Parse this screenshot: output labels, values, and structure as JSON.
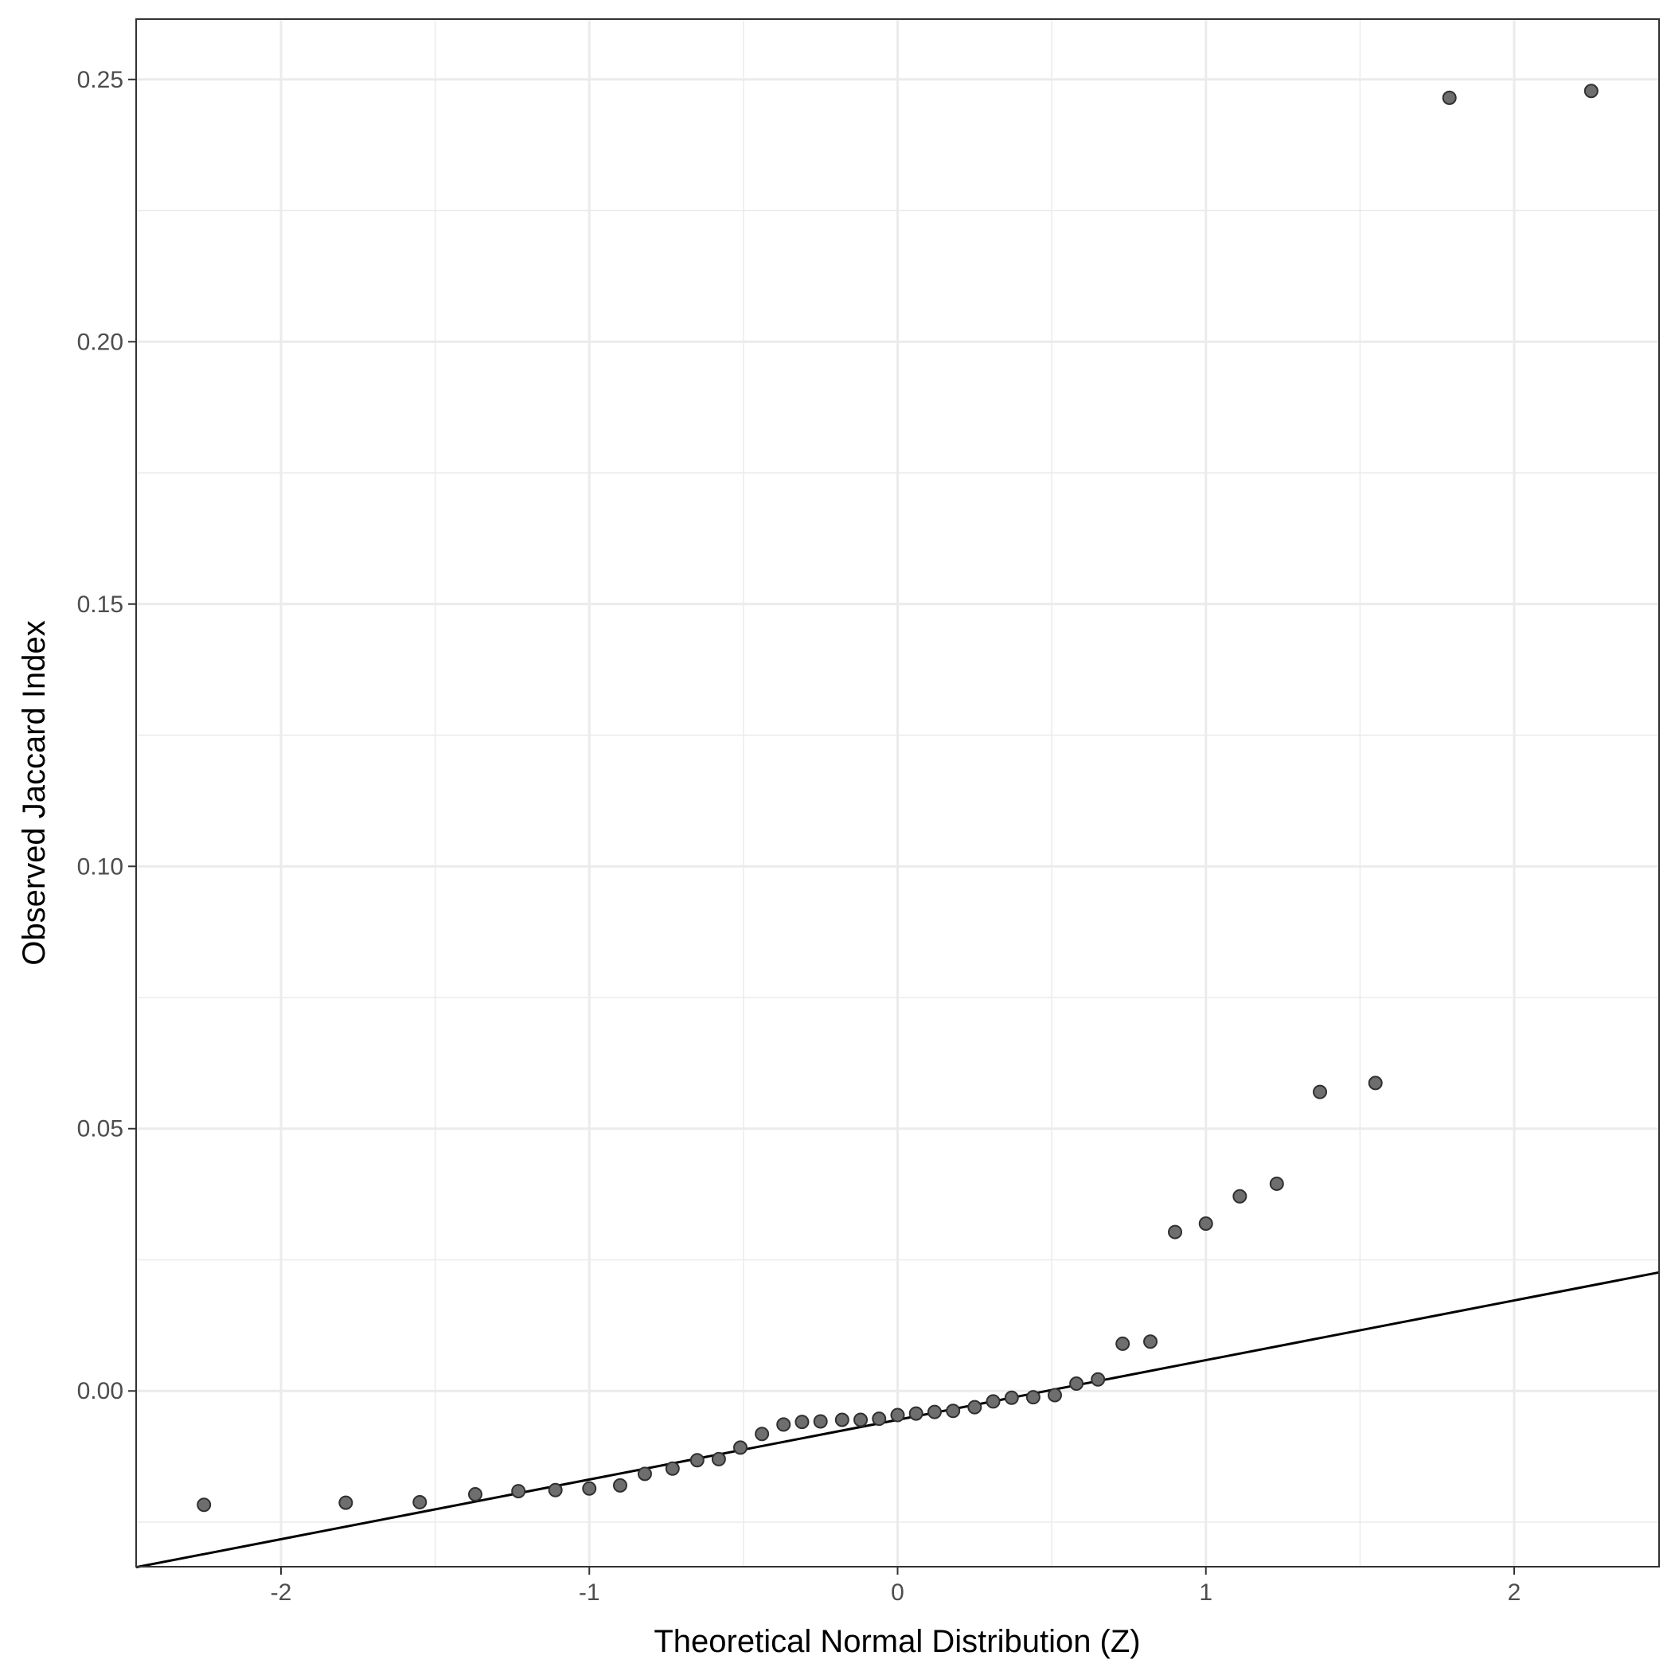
{
  "chart_data": {
    "type": "scatter",
    "title": "",
    "xlabel": "Theoretical Normal Distribution (Z)",
    "ylabel": "Observed Jaccard Index",
    "xlim": [
      -2.47,
      2.47
    ],
    "ylim": [
      -0.0335,
      0.2615
    ],
    "x_ticks": [
      -2,
      -1,
      0,
      1,
      2
    ],
    "x_tick_labels": [
      "-2",
      "-1",
      "0",
      "1",
      "2"
    ],
    "y_ticks": [
      0.0,
      0.05,
      0.1,
      0.15,
      0.2,
      0.25
    ],
    "y_tick_labels": [
      "0.00",
      "0.05",
      "0.10",
      "0.15",
      "0.20",
      "0.25"
    ],
    "grid": true,
    "legend": "none",
    "colors": {
      "point_fill": "#6e6e6e",
      "point_stroke": "#303030",
      "reference_line": "#000000",
      "grid": "#ebebeb",
      "panel_border": "#333333"
    },
    "reference_line": {
      "type": "qq-line",
      "points": [
        [
          -2.47,
          -0.0336
        ],
        [
          2.47,
          0.0226
        ]
      ]
    },
    "series": [
      {
        "values": [
          [
            -2.25,
            -0.0217
          ],
          [
            -1.79,
            -0.0213
          ],
          [
            -1.55,
            -0.0212
          ],
          [
            -1.37,
            -0.0197
          ],
          [
            -1.23,
            -0.0191
          ],
          [
            -1.11,
            -0.0189
          ],
          [
            -1.0,
            -0.0186
          ],
          [
            -0.9,
            -0.018
          ],
          [
            -0.82,
            -0.0158
          ],
          [
            -0.73,
            -0.0148
          ],
          [
            -0.65,
            -0.0132
          ],
          [
            -0.58,
            -0.013
          ],
          [
            -0.51,
            -0.0108
          ],
          [
            -0.44,
            -0.0082
          ],
          [
            -0.37,
            -0.0064
          ],
          [
            -0.31,
            -0.0059
          ],
          [
            -0.25,
            -0.0058
          ],
          [
            -0.18,
            -0.0055
          ],
          [
            -0.12,
            -0.0055
          ],
          [
            -0.06,
            -0.0053
          ],
          [
            0.0,
            -0.0046
          ],
          [
            0.06,
            -0.0043
          ],
          [
            0.12,
            -0.004
          ],
          [
            0.18,
            -0.0038
          ],
          [
            0.25,
            -0.0031
          ],
          [
            0.31,
            -0.002
          ],
          [
            0.37,
            -0.0013
          ],
          [
            0.44,
            -0.0012
          ],
          [
            0.51,
            -0.0008
          ],
          [
            0.58,
            0.0014
          ],
          [
            0.65,
            0.0022
          ],
          [
            0.73,
            0.009
          ],
          [
            0.82,
            0.0094
          ],
          [
            0.9,
            0.0303
          ],
          [
            1.0,
            0.0319
          ],
          [
            1.11,
            0.0371
          ],
          [
            1.23,
            0.0395
          ],
          [
            1.37,
            0.057
          ],
          [
            1.55,
            0.0587
          ],
          [
            1.79,
            0.2465
          ],
          [
            2.25,
            0.2478
          ]
        ]
      }
    ]
  }
}
